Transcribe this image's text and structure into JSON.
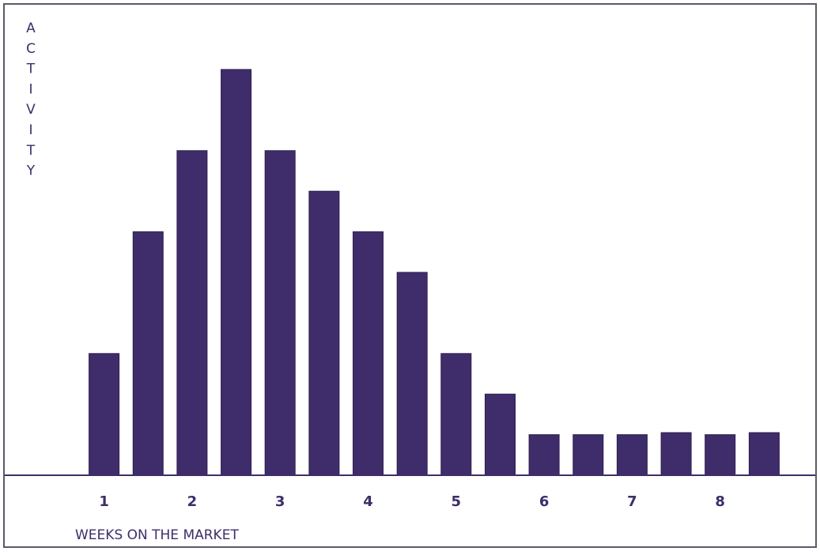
{
  "colors": {
    "bar": "#3e2d6a",
    "axis": "#3e2d6a",
    "frame": "#5a5a6a",
    "text": "#3e2d6a",
    "background": "#ffffff"
  },
  "chart_data": {
    "type": "bar",
    "title": "",
    "xlabel": "WEEKS ON THE MARKET",
    "ylabel": "ACTIVITY",
    "x_ticks": [
      "1",
      "2",
      "3",
      "4",
      "5",
      "6",
      "7",
      "8"
    ],
    "x": [
      1.0,
      1.5,
      2.0,
      2.5,
      3.0,
      3.5,
      4.0,
      4.5,
      5.0,
      5.5,
      6.0,
      6.5,
      7.0,
      7.5,
      8.0,
      8.5
    ],
    "values": [
      3.0,
      6.0,
      8.0,
      10.0,
      8.0,
      7.0,
      6.0,
      5.0,
      3.0,
      2.0,
      1.0,
      1.0,
      1.0,
      1.05,
      1.0,
      1.05
    ],
    "xlim": [
      0.5,
      9.0
    ],
    "ylim": [
      0,
      10.0
    ],
    "grid": false,
    "legend": "none"
  }
}
